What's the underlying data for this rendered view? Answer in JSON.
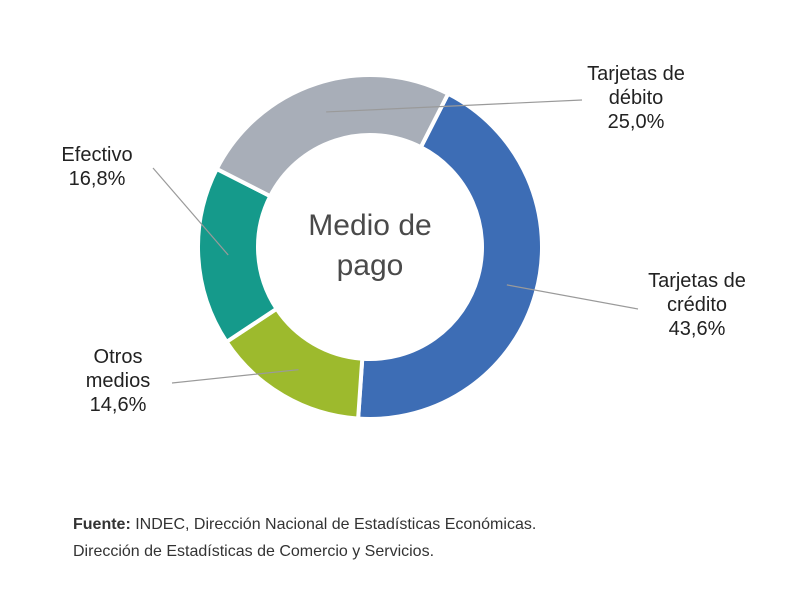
{
  "chart_data": {
    "type": "pie",
    "center_label": [
      "Medio de",
      "pago"
    ],
    "slices": [
      {
        "name": "Tarjetas de crédito",
        "label_lines": [
          "Tarjetas de",
          "crédito"
        ],
        "value": 43.6,
        "value_label": "43,6%",
        "color": "#3d6db5"
      },
      {
        "name": "Otros medios",
        "label_lines": [
          "Otros",
          "medios"
        ],
        "value": 14.6,
        "value_label": "14,6%",
        "color": "#9dba2d"
      },
      {
        "name": "Efectivo",
        "label_lines": [
          "Efectivo"
        ],
        "value": 16.8,
        "value_label": "16,8%",
        "color": "#159a8b"
      },
      {
        "name": "Tarjetas de débito",
        "label_lines": [
          "Tarjetas de",
          "débito"
        ],
        "value": 25.0,
        "value_label": "25,0%",
        "color": "#a8aeb8"
      }
    ]
  },
  "source": {
    "prefix": "Fuente:",
    "line1": "INDEC, Dirección Nacional de Estadísticas Económicas.",
    "line2": "Dirección de Estadísticas de Comercio y Servicios."
  }
}
